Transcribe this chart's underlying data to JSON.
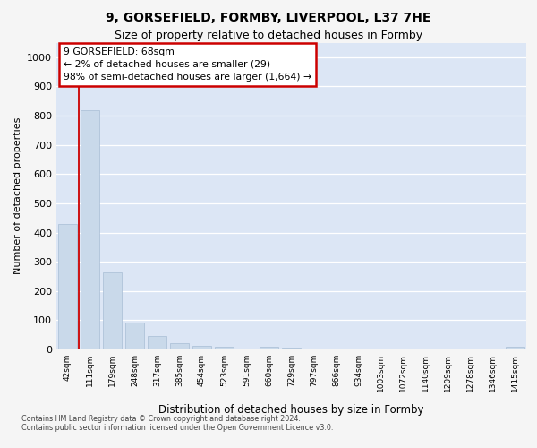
{
  "title_line1": "9, GORSEFIELD, FORMBY, LIVERPOOL, L37 7HE",
  "title_line2": "Size of property relative to detached houses in Formby",
  "xlabel": "Distribution of detached houses by size in Formby",
  "ylabel": "Number of detached properties",
  "footnote": "Contains HM Land Registry data © Crown copyright and database right 2024.\nContains public sector information licensed under the Open Government Licence v3.0.",
  "annotation_title": "9 GORSEFIELD: 68sqm",
  "annotation_line2": "← 2% of detached houses are smaller (29)",
  "annotation_line3": "98% of semi-detached houses are larger (1,664) →",
  "bar_color": "#c9d9ea",
  "bar_edge_color": "#a8bdd4",
  "annotation_box_edge": "#cc0000",
  "vline_color": "#cc0000",
  "categories": [
    "42sqm",
    "111sqm",
    "179sqm",
    "248sqm",
    "317sqm",
    "385sqm",
    "454sqm",
    "523sqm",
    "591sqm",
    "660sqm",
    "729sqm",
    "797sqm",
    "866sqm",
    "934sqm",
    "1003sqm",
    "1072sqm",
    "1140sqm",
    "1209sqm",
    "1278sqm",
    "1346sqm",
    "1415sqm"
  ],
  "values": [
    430,
    820,
    265,
    92,
    45,
    20,
    12,
    8,
    0,
    10,
    5,
    0,
    0,
    0,
    0,
    0,
    0,
    0,
    0,
    0,
    8
  ],
  "ylim": [
    0,
    1050
  ],
  "yticks": [
    0,
    100,
    200,
    300,
    400,
    500,
    600,
    700,
    800,
    900,
    1000
  ],
  "fig_bg": "#f5f5f5",
  "plot_bg": "#dce6f5",
  "grid_color": "#ffffff",
  "vline_x_index": 0.5
}
